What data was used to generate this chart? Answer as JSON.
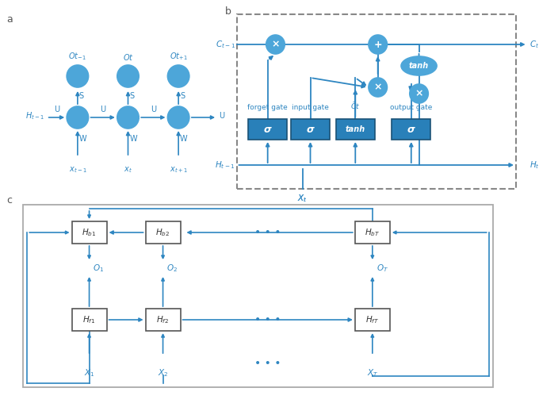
{
  "bg_color": "#ffffff",
  "blue_dark": "#2e86c1",
  "blue_fill": "#2e86c1",
  "blue_light": "#5dade2",
  "blue_circle": "#2e86c1",
  "blue_box": "#2980b9",
  "text_color": "#2e86c1",
  "arrow_color": "#2e86c1",
  "label_a": "a",
  "label_b": "b",
  "label_c": "c"
}
